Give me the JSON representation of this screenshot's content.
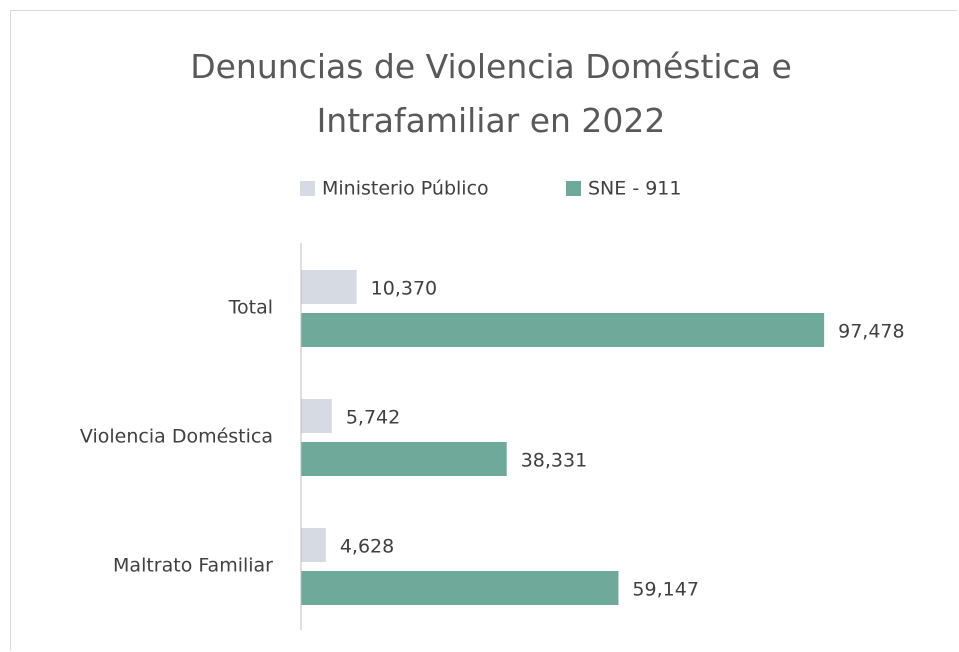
{
  "chart_data": {
    "type": "hbar",
    "title": "Denuncias de Violencia Doméstica e Intrafamiliar en 2022",
    "categories": [
      "Total",
      "Violencia Doméstica",
      "Maltrato Familiar"
    ],
    "series": [
      {
        "name": "Ministerio Público",
        "color": "#d6dae3",
        "values": [
          10370,
          5742,
          4628
        ],
        "value_labels": [
          "10,370",
          "5,742",
          "4,628"
        ]
      },
      {
        "name": "SNE - 911",
        "color": "#6fa99a",
        "values": [
          97478,
          38331,
          59147
        ],
        "value_labels": [
          "97,478",
          "38,331",
          "59,147"
        ]
      }
    ],
    "xlim": [
      0,
      120000
    ],
    "legend": "top"
  }
}
